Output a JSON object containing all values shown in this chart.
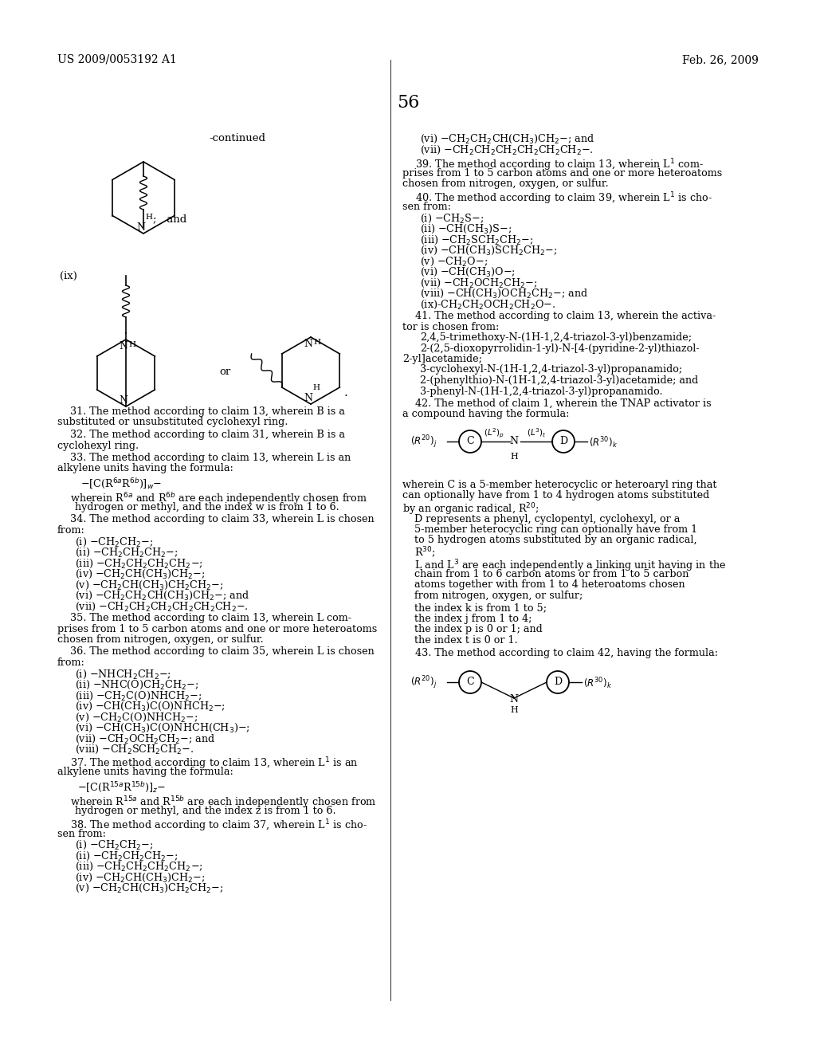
{
  "header_left": "US 2009/0053192 A1",
  "header_right": "Feb. 26, 2009",
  "page_number": "56",
  "bg_color": "#ffffff",
  "continued_text": "-continued",
  "claim41_list": [
    "2,4,5-trimethoxy-N-(1H-1,2,4-triazol-3-yl)benzamide;",
    "2-(2,5-dioxopyrrolidin-1-yl)-N-[4-(pyridine-2-yl)thiazol-",
    "2-yl]acetamide;",
    "3-cyclohexyl-N-(1H-1,2,4-triazol-3-yl)propanamido;",
    "2-(phenylthio)-N-(1H-1,2,4-triazol-3-yl)acetamide; and",
    "3-phenyl-N-(1H-1,2,4-triazol-3-yl)propanamido."
  ]
}
